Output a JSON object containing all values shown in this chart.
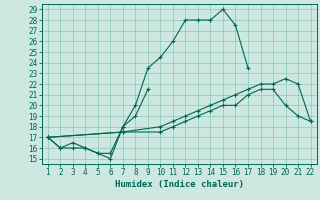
{
  "title": "",
  "xlabel": "Humidex (Indice chaleur)",
  "bg_color": "#cce8e0",
  "grid_color": "#99ccbb",
  "line_color": "#006655",
  "xlim": [
    0.5,
    22.5
  ],
  "ylim": [
    14.5,
    29.5
  ],
  "xticks": [
    1,
    2,
    3,
    4,
    5,
    6,
    7,
    8,
    9,
    10,
    11,
    12,
    13,
    14,
    15,
    16,
    17,
    18,
    19,
    20,
    21,
    22
  ],
  "yticks": [
    15,
    16,
    17,
    18,
    19,
    20,
    21,
    22,
    23,
    24,
    25,
    26,
    27,
    28,
    29
  ],
  "series": [
    {
      "x": [
        1,
        2,
        3,
        4,
        5,
        6,
        7,
        8,
        9,
        10,
        11,
        12,
        13,
        14,
        15,
        16,
        17
      ],
      "y": [
        17,
        16,
        16,
        16,
        15.5,
        15,
        18,
        20,
        23.5,
        24.5,
        26,
        28,
        28,
        28,
        29,
        27.5,
        23.5
      ]
    },
    {
      "x": [
        1,
        2,
        3,
        4,
        5,
        6,
        7,
        8,
        9
      ],
      "y": [
        17,
        16,
        16.5,
        16,
        15.5,
        15.5,
        18,
        19,
        21.5
      ]
    },
    {
      "x": [
        1,
        7,
        10,
        11,
        12,
        13,
        14,
        15,
        16,
        17,
        18,
        19,
        20,
        21,
        22
      ],
      "y": [
        17,
        17.5,
        18,
        18.5,
        19,
        19.5,
        20,
        20.5,
        21,
        21.5,
        22,
        22,
        22.5,
        22,
        18.5
      ]
    },
    {
      "x": [
        1,
        7,
        10,
        11,
        12,
        13,
        14,
        15,
        16,
        17,
        18,
        19,
        20,
        21,
        22
      ],
      "y": [
        17,
        17.5,
        17.5,
        18,
        18.5,
        19,
        19.5,
        20,
        20,
        21,
        21.5,
        21.5,
        20,
        19,
        18.5
      ]
    }
  ]
}
